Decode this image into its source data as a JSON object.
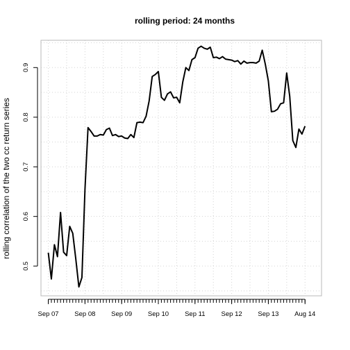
{
  "chart_data": {
    "type": "line",
    "title": "rolling period: 24 months",
    "xlabel": "",
    "ylabel": "rolling correlation of the two cc return series",
    "ylim": [
      0.44,
      0.955
    ],
    "xlim": [
      -0.2,
      7.45
    ],
    "grid": true,
    "x_major_ticks": [
      {
        "x": 0,
        "label": "Sep 07"
      },
      {
        "x": 1,
        "label": "Sep 08"
      },
      {
        "x": 2,
        "label": "Sep 09"
      },
      {
        "x": 3,
        "label": "Sep 10"
      },
      {
        "x": 4,
        "label": "Sep 11"
      },
      {
        "x": 5,
        "label": "Sep 12"
      },
      {
        "x": 6,
        "label": "Sep 13"
      },
      {
        "x": 7,
        "label": "Aug 14"
      }
    ],
    "y_ticks": [
      0.5,
      0.6,
      0.7,
      0.8,
      0.9
    ],
    "series": [
      {
        "name": "",
        "values": [
          0.527,
          0.474,
          0.543,
          0.519,
          0.608,
          0.528,
          0.521,
          0.58,
          0.566,
          0.514,
          0.458,
          0.477,
          0.655,
          0.779,
          0.771,
          0.762,
          0.762,
          0.765,
          0.764,
          0.775,
          0.778,
          0.763,
          0.765,
          0.761,
          0.762,
          0.758,
          0.757,
          0.765,
          0.759,
          0.789,
          0.79,
          0.789,
          0.802,
          0.833,
          0.882,
          0.886,
          0.892,
          0.84,
          0.834,
          0.847,
          0.851,
          0.839,
          0.84,
          0.829,
          0.871,
          0.9,
          0.894,
          0.916,
          0.92,
          0.939,
          0.943,
          0.939,
          0.937,
          0.941,
          0.92,
          0.921,
          0.918,
          0.922,
          0.917,
          0.916,
          0.915,
          0.912,
          0.914,
          0.907,
          0.913,
          0.909,
          0.91,
          0.91,
          0.909,
          0.913,
          0.935,
          0.907,
          0.873,
          0.811,
          0.812,
          0.816,
          0.827,
          0.829,
          0.889,
          0.842,
          0.753,
          0.739,
          0.776,
          0.766,
          0.782
        ]
      }
    ]
  }
}
